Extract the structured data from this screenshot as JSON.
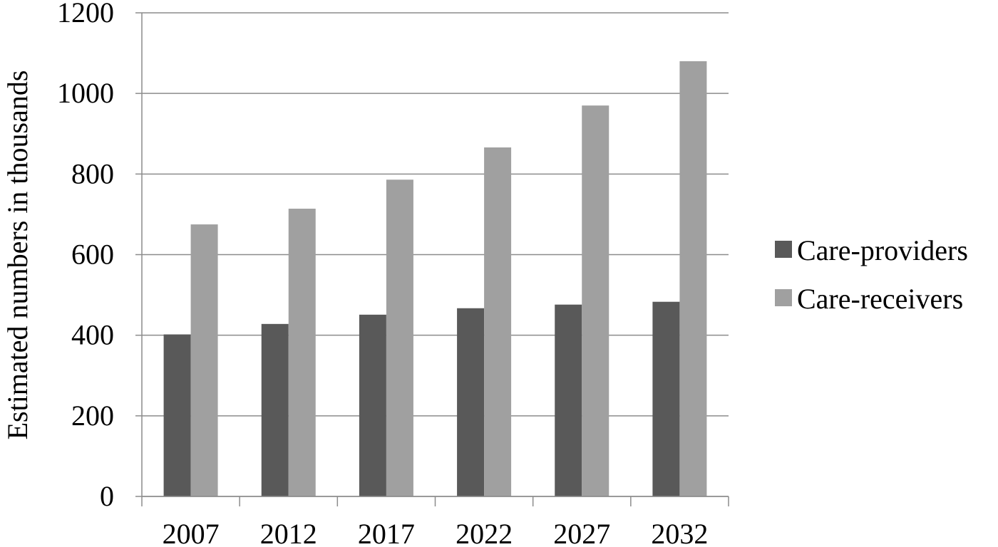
{
  "chart_data": {
    "type": "bar",
    "title": "",
    "xlabel": "",
    "ylabel": "Estimated numbers in thousands",
    "categories": [
      "2007",
      "2012",
      "2017",
      "2022",
      "2027",
      "2032"
    ],
    "series": [
      {
        "name": "Care-providers",
        "color": "#595959",
        "values": [
          402,
          428,
          451,
          467,
          476,
          483
        ]
      },
      {
        "name": "Care-receivers",
        "color": "#a0a0a0",
        "values": [
          675,
          714,
          786,
          866,
          970,
          1080
        ]
      }
    ],
    "ylim": [
      0,
      1200
    ],
    "yticks": [
      "0",
      "200",
      "400",
      "600",
      "800",
      "1000",
      "1200"
    ],
    "grid": true,
    "legend_position": "right"
  }
}
